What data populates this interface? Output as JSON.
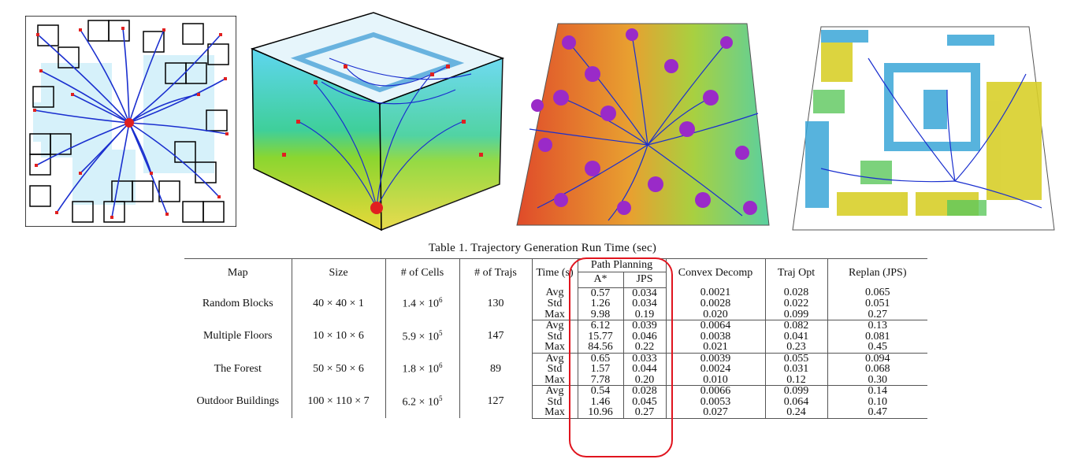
{
  "caption": "Table 1. Trajectory Generation Run Time (sec)",
  "table": {
    "headers": {
      "map": "Map",
      "size": "Size",
      "cells": "# of Cells",
      "trajs": "# of Trajs",
      "time": "Time (s)",
      "path_planning": "Path Planning",
      "astar": "A*",
      "jps": "JPS",
      "convex": "Convex Decomp",
      "trajopt": "Traj Opt",
      "replan": "Replan (JPS)"
    },
    "stats": [
      "Avg",
      "Std",
      "Max"
    ],
    "rows": [
      {
        "map": "Random Blocks",
        "size": "40 × 40 × 1",
        "cells_base": "1.4 × 10",
        "cells_exp": "6",
        "trajs": "130",
        "astar": [
          "0.57",
          "1.26",
          "9.98"
        ],
        "jps": [
          "0.034",
          "0.034",
          "0.19"
        ],
        "convex": [
          "0.0021",
          "0.0028",
          "0.020"
        ],
        "trajopt": [
          "0.028",
          "0.022",
          "0.099"
        ],
        "replan": [
          "0.065",
          "0.051",
          "0.27"
        ]
      },
      {
        "map": "Multiple Floors",
        "size": "10 × 10 × 6",
        "cells_base": "5.9 × 10",
        "cells_exp": "5",
        "trajs": "147",
        "astar": [
          "6.12",
          "15.77",
          "84.56"
        ],
        "jps": [
          "0.039",
          "0.046",
          "0.22"
        ],
        "convex": [
          "0.0064",
          "0.0038",
          "0.021"
        ],
        "trajopt": [
          "0.082",
          "0.041",
          "0.23"
        ],
        "replan": [
          "0.13",
          "0.081",
          "0.45"
        ]
      },
      {
        "map": "The Forest",
        "size": "50 × 50 × 6",
        "cells_base": "1.8 × 10",
        "cells_exp": "6",
        "trajs": "89",
        "astar": [
          "0.65",
          "1.57",
          "7.78"
        ],
        "jps": [
          "0.033",
          "0.044",
          "0.20"
        ],
        "convex": [
          "0.0039",
          "0.0024",
          "0.010"
        ],
        "trajopt": [
          "0.055",
          "0.031",
          "0.12"
        ],
        "replan": [
          "0.094",
          "0.068",
          "0.30"
        ]
      },
      {
        "map": "Outdoor Buildings",
        "size": "100 × 110 × 7",
        "cells_base": "6.2 × 10",
        "cells_exp": "5",
        "trajs": "127",
        "astar": [
          "0.54",
          "1.46",
          "10.96"
        ],
        "jps": [
          "0.028",
          "0.045",
          "0.27"
        ],
        "convex": [
          "0.0066",
          "0.0053",
          "0.027"
        ],
        "trajopt": [
          "0.099",
          "0.064",
          "0.24"
        ],
        "replan": [
          "0.14",
          "0.10",
          "0.47"
        ]
      }
    ]
  },
  "colors": {
    "highlight": "#e0141e",
    "trajectory": "#1a2fcf",
    "endpoint": "#e02020"
  }
}
